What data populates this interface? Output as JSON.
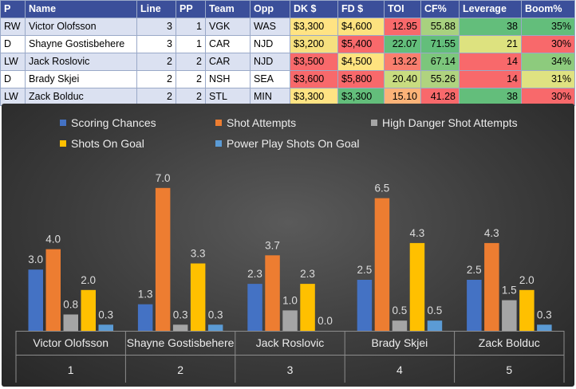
{
  "table": {
    "headers": [
      "P",
      "Name",
      "Line",
      "PP",
      "Team",
      "Opp",
      "DK $",
      "FD $",
      "TOI",
      "CF%",
      "Leverage",
      "Boom%"
    ],
    "rows": [
      [
        "RW",
        "Victor Olofsson",
        "3",
        "1",
        "VGK",
        "WAS",
        "$3,300",
        "$4,600",
        "12.95",
        "55.88",
        "38",
        "35%"
      ],
      [
        "D",
        "Shayne Gostisbehere",
        "3",
        "1",
        "CAR",
        "NJD",
        "$3,200",
        "$5,400",
        "22.07",
        "71.55",
        "21",
        "30%"
      ],
      [
        "LW",
        "Jack Roslovic",
        "2",
        "2",
        "CAR",
        "NJD",
        "$3,500",
        "$4,500",
        "13.22",
        "67.14",
        "14",
        "34%"
      ],
      [
        "D",
        "Brady Skjei",
        "2",
        "2",
        "NSH",
        "SEA",
        "$3,600",
        "$5,800",
        "20.40",
        "55.26",
        "14",
        "31%"
      ],
      [
        "LW",
        "Zack Bolduc",
        "2",
        "2",
        "STL",
        "MIN",
        "$3,300",
        "$3,300",
        "15.10",
        "41.28",
        "38",
        "30%"
      ]
    ],
    "cell_colors": [
      [
        "",
        "",
        "",
        "",
        "",
        "",
        "#ffe383",
        "#fce27f",
        "#f8696b",
        "#a8d17f",
        "#63be7b",
        "#63be7b"
      ],
      [
        "",
        "",
        "",
        "",
        "",
        "",
        "#f6e07f",
        "#f8696b",
        "#63be7b",
        "#63be7b",
        "#dde27f",
        "#f8696b"
      ],
      [
        "",
        "",
        "",
        "",
        "",
        "",
        "#f8696b",
        "#fee37f",
        "#f97e6e",
        "#7cc67c",
        "#f8696b",
        "#8dcb7d"
      ],
      [
        "",
        "",
        "",
        "",
        "",
        "",
        "#f8696b",
        "#f8696b",
        "#c8dc80",
        "#b0d37f",
        "#f8696b",
        "#dfe281"
      ],
      [
        "",
        "",
        "",
        "",
        "",
        "",
        "#ffe383",
        "#63be7b",
        "#fcb378",
        "#f8696b",
        "#63be7b",
        "#f8696b"
      ]
    ]
  },
  "chart_data": {
    "type": "bar",
    "categories": [
      "Victor Olofsson",
      "Shayne Gostisbehere",
      "Jack Roslovic",
      "Brady Skjei",
      "Zack Bolduc"
    ],
    "category_numbers": [
      "1",
      "2",
      "3",
      "4",
      "5"
    ],
    "series": [
      {
        "name": "Scoring Chances",
        "color": "#4472c4",
        "values": [
          3.0,
          1.3,
          2.3,
          2.5,
          2.5
        ],
        "labels": [
          "3.0",
          "1.3",
          "2.3",
          "2.5",
          "2.5"
        ]
      },
      {
        "name": "Shot Attempts",
        "color": "#ed7d31",
        "values": [
          4.0,
          7.0,
          3.7,
          6.5,
          4.3
        ],
        "labels": [
          "4.0",
          "7.0",
          "3.7",
          "6.5",
          "4.3"
        ]
      },
      {
        "name": "High Danger Shot Attempts",
        "color": "#a5a5a5",
        "values": [
          0.8,
          0.3,
          1.0,
          0.5,
          1.5
        ],
        "labels": [
          "0.8",
          "0.3",
          "1.0",
          "0.5",
          "1.5"
        ]
      },
      {
        "name": "Shots On Goal",
        "color": "#ffc000",
        "values": [
          2.0,
          3.3,
          2.3,
          4.3,
          2.0
        ],
        "labels": [
          "2.0",
          "3.3",
          "2.3",
          "4.3",
          "2.0"
        ]
      },
      {
        "name": "Power Play Shots On Goal",
        "color": "#5b9bd5",
        "values": [
          0.3,
          0.3,
          0.0,
          0.5,
          0.3
        ],
        "labels": [
          "0.3",
          "0.3",
          "0.0",
          "0.5",
          "0.3"
        ]
      }
    ],
    "legend_position": "top",
    "ylim": [
      0,
      7.5
    ],
    "grid": false
  }
}
